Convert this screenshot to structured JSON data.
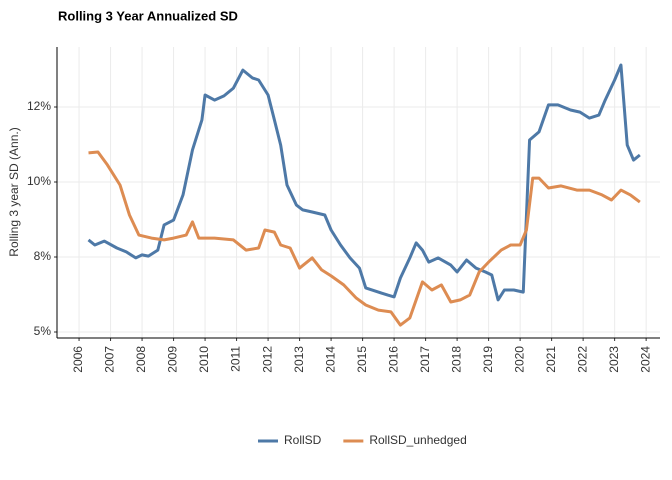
{
  "chart_data": {
    "type": "line",
    "title": "Rolling 3 Year Annualized SD",
    "y_label": "Rolling 3 year SD (Ann.)",
    "grid": true,
    "legend": "bottom",
    "xlim": [
      2005.3,
      2024.44
    ],
    "xticks": [
      2006,
      2007,
      2008,
      2009,
      2010,
      2011,
      2012,
      2013,
      2014,
      2015,
      2016,
      2017,
      2018,
      2019,
      2020,
      2021,
      2022,
      2023,
      2024
    ],
    "ylim": [
      4.8,
      14.5
    ],
    "yticks": [
      {
        "value": 5,
        "label": "5%"
      },
      {
        "value": 7.5,
        "label": "8%"
      },
      {
        "value": 10,
        "label": "10%"
      },
      {
        "value": 12.5,
        "label": "12%"
      }
    ],
    "series": [
      {
        "name": "RollSD",
        "color": "#4e79a7",
        "x": [
          2006.3,
          2006.5,
          2006.8,
          2007.2,
          2007.5,
          2007.8,
          2008.0,
          2008.2,
          2008.5,
          2008.7,
          2009.0,
          2009.3,
          2009.6,
          2009.9,
          2010.0,
          2010.3,
          2010.6,
          2010.9,
          2011.2,
          2011.5,
          2011.7,
          2012.0,
          2012.2,
          2012.4,
          2012.6,
          2012.9,
          2013.1,
          2013.4,
          2013.8,
          2014.0,
          2014.3,
          2014.6,
          2014.9,
          2015.1,
          2015.5,
          2015.8,
          2016.0,
          2016.2,
          2016.5,
          2016.7,
          2016.9,
          2017.1,
          2017.4,
          2017.8,
          2018.0,
          2018.3,
          2018.6,
          2018.9,
          2019.1,
          2019.3,
          2019.5,
          2019.8,
          2020.1,
          2020.3,
          2020.6,
          2020.9,
          2021.2,
          2021.6,
          2021.9,
          2022.2,
          2022.5,
          2022.7,
          2023.0,
          2023.2,
          2023.4,
          2023.6,
          2023.8
        ],
        "values": [
          8.07,
          7.9,
          8.03,
          7.8,
          7.67,
          7.47,
          7.57,
          7.53,
          7.73,
          8.57,
          8.73,
          9.57,
          11.07,
          12.07,
          12.9,
          12.73,
          12.87,
          13.13,
          13.73,
          13.47,
          13.4,
          12.9,
          12.07,
          11.23,
          9.9,
          9.23,
          9.07,
          9.0,
          8.9,
          8.4,
          7.9,
          7.47,
          7.13,
          6.47,
          6.33,
          6.23,
          6.17,
          6.8,
          7.47,
          7.97,
          7.73,
          7.33,
          7.47,
          7.23,
          7.0,
          7.4,
          7.13,
          7.0,
          6.9,
          6.07,
          6.4,
          6.4,
          6.33,
          11.4,
          11.67,
          12.57,
          12.57,
          12.4,
          12.33,
          12.13,
          12.23,
          12.73,
          13.4,
          13.9,
          11.23,
          10.73,
          10.9
        ]
      },
      {
        "name": "RollSD_unhedged",
        "color": "#dd8c52",
        "x": [
          2006.3,
          2006.6,
          2006.9,
          2007.3,
          2007.6,
          2007.9,
          2008.3,
          2008.7,
          2009.0,
          2009.4,
          2009.6,
          2009.8,
          2010.3,
          2010.9,
          2011.3,
          2011.7,
          2011.9,
          2012.2,
          2012.4,
          2012.7,
          2013.0,
          2013.4,
          2013.7,
          2014.0,
          2014.4,
          2014.8,
          2015.1,
          2015.5,
          2015.9,
          2016.2,
          2016.5,
          2016.7,
          2016.9,
          2017.2,
          2017.5,
          2017.8,
          2018.1,
          2018.4,
          2018.7,
          2019.0,
          2019.4,
          2019.7,
          2020.0,
          2020.2,
          2020.4,
          2020.6,
          2020.9,
          2021.3,
          2021.8,
          2022.2,
          2022.6,
          2022.9,
          2023.2,
          2023.5,
          2023.8
        ],
        "values": [
          10.97,
          11.0,
          10.57,
          9.9,
          8.9,
          8.23,
          8.13,
          8.07,
          8.13,
          8.23,
          8.67,
          8.13,
          8.13,
          8.07,
          7.73,
          7.8,
          8.4,
          8.33,
          7.9,
          7.8,
          7.13,
          7.47,
          7.07,
          6.87,
          6.57,
          6.13,
          5.9,
          5.73,
          5.67,
          5.23,
          5.47,
          6.07,
          6.67,
          6.4,
          6.57,
          6.0,
          6.07,
          6.23,
          7.0,
          7.33,
          7.73,
          7.9,
          7.9,
          8.4,
          10.13,
          10.13,
          9.8,
          9.87,
          9.73,
          9.73,
          9.57,
          9.4,
          9.73,
          9.57,
          9.33
        ]
      }
    ]
  }
}
